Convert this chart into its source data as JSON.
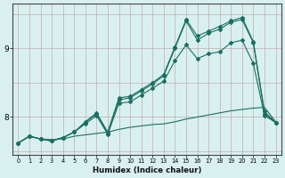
{
  "xlabel": "Humidex (Indice chaleur)",
  "bg_color": "#d9f0f0",
  "grid_color_v": "#c4aaaa",
  "grid_color_h": "#c4aaaa",
  "line_color": "#1a7060",
  "xlim": [
    -0.5,
    23.5
  ],
  "ylim": [
    7.45,
    9.65
  ],
  "yticks": [
    8,
    9
  ],
  "xticks": [
    0,
    1,
    2,
    3,
    4,
    5,
    6,
    7,
    8,
    9,
    10,
    11,
    12,
    13,
    14,
    15,
    16,
    17,
    18,
    19,
    20,
    21,
    22,
    23
  ],
  "line1_x": [
    0,
    1,
    2,
    3,
    4,
    5,
    6,
    7,
    8,
    9,
    10,
    11,
    12,
    13,
    14,
    15,
    16,
    17,
    18,
    19,
    20,
    21,
    22,
    23
  ],
  "line1_y": [
    7.62,
    7.72,
    7.68,
    7.67,
    7.68,
    7.72,
    7.74,
    7.76,
    7.78,
    7.82,
    7.85,
    7.87,
    7.89,
    7.9,
    7.93,
    7.97,
    8.0,
    8.03,
    8.06,
    8.09,
    8.11,
    8.13,
    8.14,
    7.93
  ],
  "line2_x": [
    0,
    1,
    2,
    3,
    4,
    5,
    6,
    7,
    8,
    9,
    10,
    11,
    12,
    13,
    14,
    15,
    16,
    17,
    18,
    19,
    20,
    21,
    22,
    23
  ],
  "line2_y": [
    7.62,
    7.72,
    7.68,
    7.66,
    7.7,
    7.78,
    7.9,
    8.02,
    7.75,
    8.2,
    8.22,
    8.32,
    8.42,
    8.52,
    8.82,
    9.05,
    8.85,
    8.92,
    8.95,
    9.08,
    9.12,
    8.78,
    8.02,
    7.92
  ],
  "line3_x": [
    0,
    1,
    2,
    3,
    4,
    5,
    6,
    7,
    8,
    9,
    10,
    11,
    12,
    13,
    14,
    15,
    16,
    17,
    18,
    19,
    20,
    21,
    22,
    23
  ],
  "line3_y": [
    7.62,
    7.72,
    7.68,
    7.65,
    7.7,
    7.78,
    7.92,
    8.05,
    7.76,
    8.25,
    8.28,
    8.38,
    8.48,
    8.6,
    9.0,
    9.4,
    9.12,
    9.22,
    9.28,
    9.38,
    9.42,
    9.08,
    8.05,
    7.92
  ],
  "line4_x": [
    0,
    1,
    2,
    3,
    4,
    5,
    6,
    7,
    8,
    9,
    10,
    11,
    12,
    13,
    14,
    15,
    16,
    17,
    18,
    19,
    20,
    21,
    22,
    23
  ],
  "line4_y": [
    7.62,
    7.72,
    7.68,
    7.65,
    7.7,
    7.78,
    7.93,
    8.06,
    7.78,
    8.28,
    8.3,
    8.4,
    8.5,
    8.62,
    9.02,
    9.42,
    9.18,
    9.25,
    9.32,
    9.4,
    9.45,
    9.1,
    8.08,
    7.92
  ]
}
